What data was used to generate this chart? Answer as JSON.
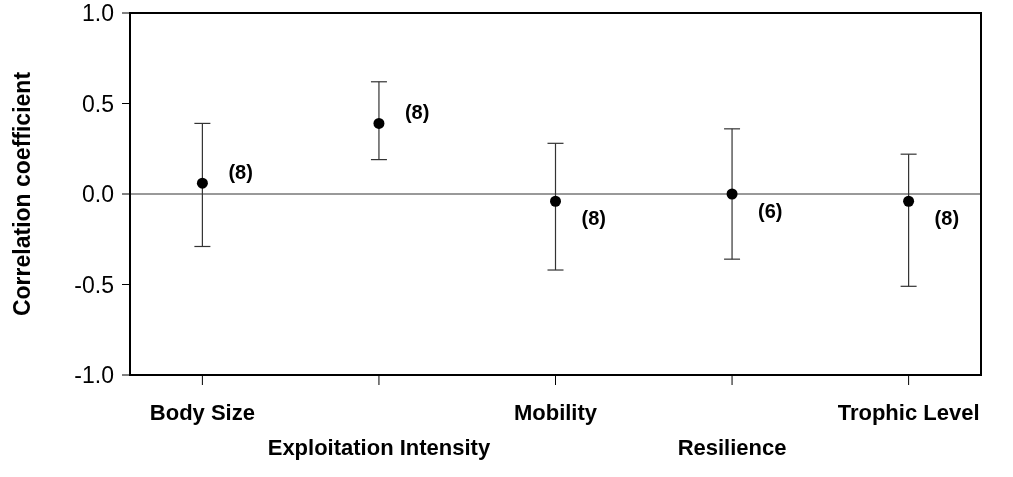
{
  "chart_data": {
    "type": "scatter",
    "ylabel": "Correlation coefficient",
    "categories": [
      "Body Size",
      "Exploitation Intensity",
      "Mobility",
      "Resilience",
      "Trophic Level"
    ],
    "values": [
      0.06,
      0.39,
      -0.04,
      0,
      -0.04
    ],
    "errors": [
      [
        -0.29,
        0.39
      ],
      [
        0.19,
        0.62
      ],
      [
        -0.42,
        0.28
      ],
      [
        -0.36,
        0.36
      ],
      [
        -0.51,
        0.22
      ]
    ],
    "annotations": [
      {
        "text": "(8)",
        "x": "Body Size",
        "y": 0.06
      },
      {
        "text": "(8)",
        "x": "Exploitation Intensity",
        "y": 0.39
      },
      {
        "text": "(8)",
        "x": "Mobility",
        "y": -0.04
      },
      {
        "text": "(6)",
        "x": "Resilience",
        "y": 0
      },
      {
        "text": "(8)",
        "x": "Trophic Level",
        "y": -0.04
      }
    ],
    "color": "#000000",
    "marker": "circle",
    "ylim": [
      -1,
      1
    ],
    "yticks": [
      {
        "value": -1,
        "label": "-1.0"
      },
      {
        "value": -0.5,
        "label": "-0.5"
      },
      {
        "value": 0,
        "label": "0.0"
      },
      {
        "value": 0.5,
        "label": "0.5"
      },
      {
        "value": 1,
        "label": "1.0"
      }
    ],
    "ref_lines": [
      {
        "axis": "y",
        "value": 0,
        "color": "#999999"
      }
    ],
    "grid": false
  }
}
